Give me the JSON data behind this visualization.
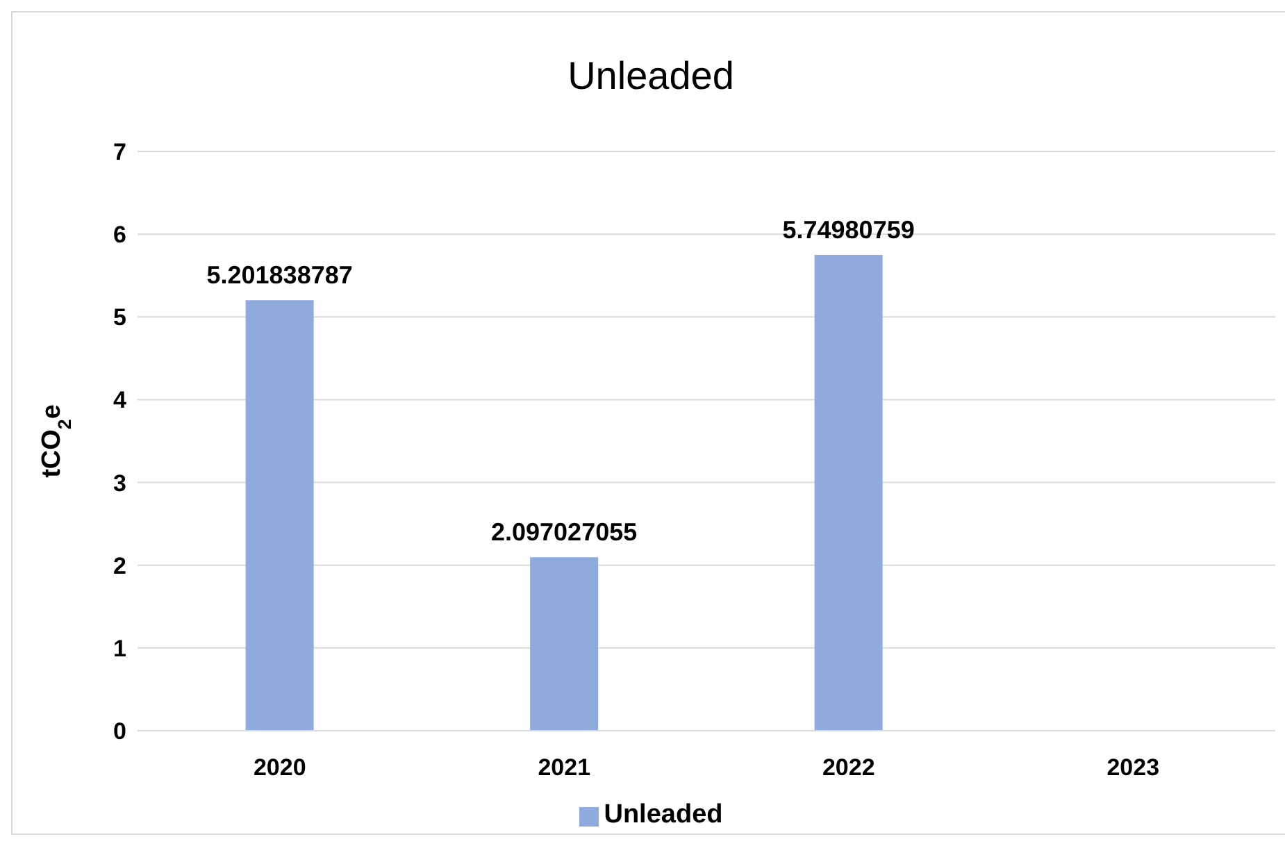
{
  "chart_data": {
    "type": "bar",
    "title": "Unleaded",
    "ylabel": "tCO$_{2}$e",
    "categories": [
      "2020",
      "2021",
      "2022",
      "2023"
    ],
    "series": [
      {
        "name": "Unleaded",
        "color": "#8faadc",
        "values": [
          5.201838787,
          2.097027055,
          5.74980759,
          null
        ]
      }
    ],
    "ylim": [
      0,
      7
    ],
    "yticks": [
      0,
      1,
      2,
      3,
      4,
      5,
      6,
      7
    ],
    "grid": "y",
    "legend": "bottom",
    "data_labels": true
  }
}
